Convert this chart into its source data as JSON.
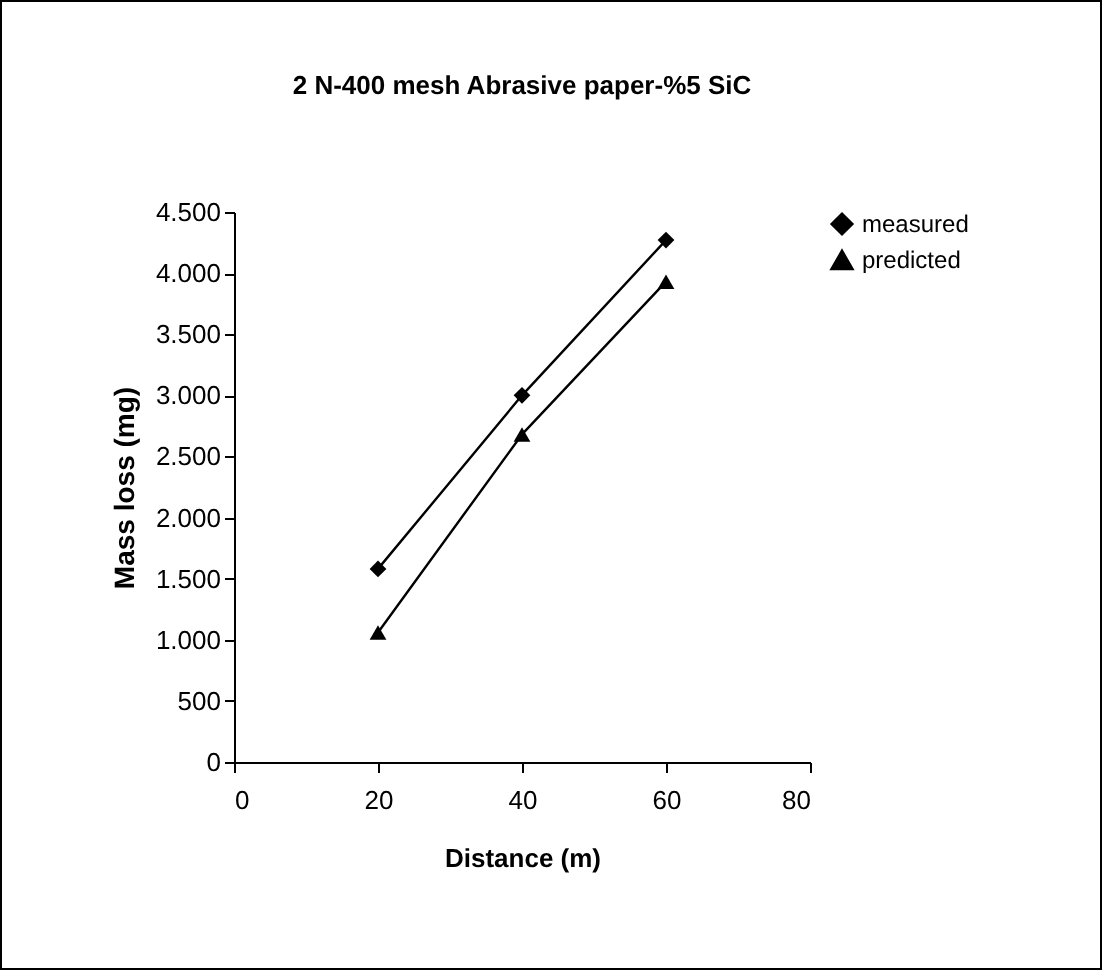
{
  "chart_data": {
    "type": "line",
    "title": "2 N-400 mesh Abrasive paper-%5 SiC",
    "xlabel": "Distance (m)",
    "ylabel": "Mass loss (mg)",
    "x": [
      20,
      40,
      60
    ],
    "series": [
      {
        "name": "measured",
        "color": "#000000",
        "marker": "diamond",
        "values": [
          1580,
          3000,
          4270
        ]
      },
      {
        "name": "predicted",
        "color": "#000000",
        "marker": "triangle",
        "values": [
          1060,
          2680,
          3930
        ]
      }
    ],
    "xlim": [
      0,
      80
    ],
    "xticks": [
      0,
      20,
      40,
      60,
      80
    ],
    "ylim": [
      0,
      4500
    ],
    "yticks": [
      0,
      500,
      {
        "value": 1000,
        "label": "1.000"
      },
      {
        "value": 1500,
        "label": "1.500"
      },
      {
        "value": 2000,
        "label": "2.000"
      },
      {
        "value": 2500,
        "label": "2.500"
      },
      {
        "value": 3000,
        "label": "3.000"
      },
      {
        "value": 3500,
        "label": "3.500"
      },
      {
        "value": 4000,
        "label": "4.000"
      },
      {
        "value": 4500,
        "label": "4.500"
      }
    ],
    "grid": false,
    "legend": "right",
    "line_style": "solid"
  }
}
